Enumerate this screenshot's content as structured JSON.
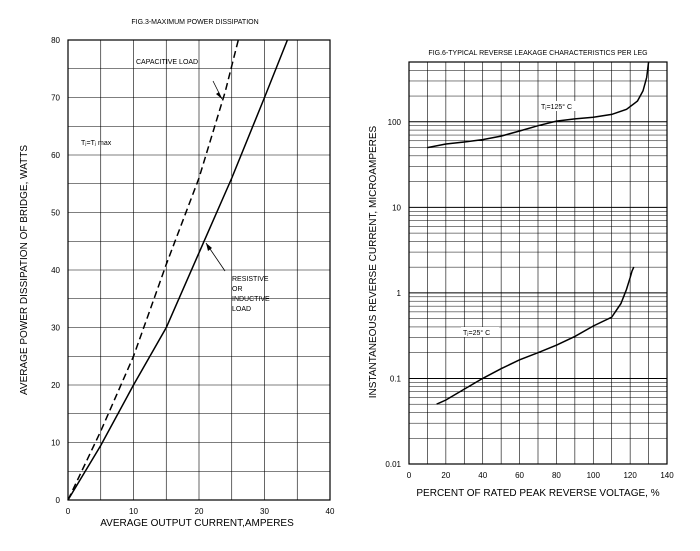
{
  "chart_data": [
    {
      "type": "line",
      "title": "FIG.3-MAXIMUM POWER DISSIPATION",
      "xlabel": "AVERAGE OUTPUT CURRENT,AMPERES",
      "ylabel": "AVERAGE POWER DISSIPATION OF BRIDGE, WATTS",
      "xlim": [
        0,
        40
      ],
      "ylim": [
        0,
        80
      ],
      "xticks": [
        0,
        10,
        20,
        30,
        40
      ],
      "yticks": [
        0,
        10,
        20,
        30,
        40,
        50,
        60,
        70,
        80
      ],
      "grid": true,
      "annotations": {
        "condition": "Tⱼ=Tⱼ max",
        "capacitive": "CAPACITIVE LOAD",
        "resistive": [
          "RESISTIVE",
          "OR",
          "INDUCTIVE",
          "LOAD"
        ]
      },
      "series": [
        {
          "label": "capacitive",
          "style": "dashed",
          "color": "#000000",
          "x": [
            0,
            5,
            10,
            15,
            20,
            24,
            26
          ],
          "y": [
            0,
            12,
            25,
            41,
            56,
            71,
            80
          ]
        },
        {
          "label": "resistive",
          "style": "solid",
          "color": "#000000",
          "x": [
            0,
            5,
            10,
            15,
            20,
            25,
            30,
            33.5
          ],
          "y": [
            0,
            9.5,
            20,
            30,
            43,
            56,
            70,
            80
          ]
        }
      ]
    },
    {
      "type": "line",
      "title": "FIG.6-TYPICAL REVERSE LEAKAGE CHARACTERISTICS PER LEG",
      "xlabel": "PERCENT OF RATED PEAK REVERSE VOLTAGE, %",
      "ylabel": "INSTANTANEOUS REVERSE CURRENT, MICROAMPERES",
      "xlim": [
        0,
        140
      ],
      "ylim": [
        0.01,
        500
      ],
      "yscale": "log",
      "xticks": [
        0,
        20,
        40,
        60,
        80,
        100,
        120,
        140
      ],
      "ytick_labels": [
        "0.01",
        "0.1",
        "1",
        "10",
        "100"
      ],
      "grid": true,
      "series": [
        {
          "label": "Tⱼ=125° C",
          "style": "solid",
          "color": "#000000",
          "x": [
            10,
            20,
            30,
            40,
            50,
            60,
            70,
            80,
            90,
            100,
            110,
            118,
            124,
            127,
            129,
            130
          ],
          "y": [
            50,
            55,
            58,
            62,
            68,
            78,
            90,
            102,
            108,
            113,
            122,
            140,
            175,
            230,
            330,
            500
          ]
        },
        {
          "label": "Tⱼ=25° C",
          "style": "solid",
          "color": "#000000",
          "x": [
            15,
            20,
            30,
            40,
            50,
            60,
            70,
            80,
            90,
            100,
            110,
            115,
            118,
            120,
            121,
            122
          ],
          "y": [
            0.05,
            0.056,
            0.075,
            0.1,
            0.13,
            0.165,
            0.2,
            0.245,
            0.31,
            0.41,
            0.52,
            0.75,
            1.1,
            1.5,
            1.8,
            2.0
          ]
        }
      ]
    }
  ]
}
